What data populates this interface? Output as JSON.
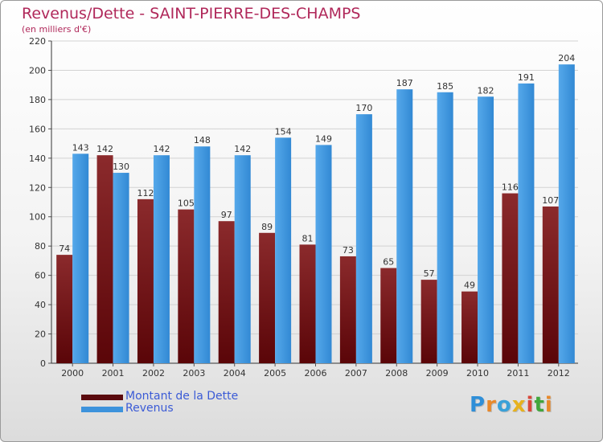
{
  "title": "Revenus/Dette - SAINT-PIERRE-DES-CHAMPS",
  "subtitle": "(en milliers d'€)",
  "logo": {
    "text": "Proxiti",
    "colors": [
      "#2f8fd8",
      "#e8892a",
      "#3aa1d8",
      "#e7b21e",
      "#d9473a",
      "#41a63c",
      "#e8892a"
    ]
  },
  "colors": {
    "dette": "#7a1418",
    "revenus": "#3d93dc",
    "title": "#b0285a",
    "legend_text": "#3b5bd6"
  },
  "chart_data": {
    "type": "bar",
    "categories": [
      "2000",
      "2001",
      "2002",
      "2003",
      "2004",
      "2005",
      "2006",
      "2007",
      "2008",
      "2009",
      "2010",
      "2011",
      "2012"
    ],
    "series": [
      {
        "name": "Montant de la Dette",
        "values": [
          74,
          142,
          112,
          105,
          97,
          89,
          81,
          73,
          65,
          57,
          49,
          116,
          107
        ]
      },
      {
        "name": "Revenus",
        "values": [
          143,
          130,
          142,
          148,
          142,
          154,
          149,
          170,
          187,
          185,
          182,
          191,
          204
        ]
      }
    ],
    "ylim": [
      0,
      220
    ],
    "yticks": [
      0,
      20,
      40,
      60,
      80,
      100,
      120,
      140,
      160,
      180,
      200,
      220
    ],
    "grid": true,
    "legend_position": "bottom-left"
  }
}
